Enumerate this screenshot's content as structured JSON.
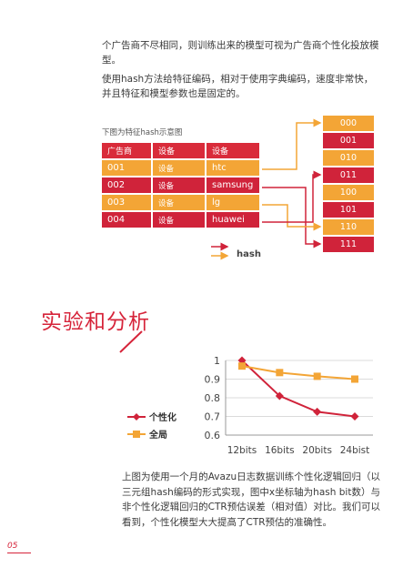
{
  "intro": {
    "p1": "个广告商不尽相同，则训练出来的模型可视为广告商个性化投放模型。",
    "p2": "使用hash方法给特征编码，相对于使用字典编码，速度非常快，并且特征和模型参数也是固定的。"
  },
  "figure": {
    "caption": "下图为特征hash示意图",
    "header": [
      "广告商",
      "设备",
      "设备"
    ],
    "rows": [
      {
        "id": "001",
        "device": "设备",
        "value": "htc",
        "color": "orange"
      },
      {
        "id": "002",
        "device": "设备",
        "value": "samsung",
        "color": "red"
      },
      {
        "id": "003",
        "device": "设备",
        "value": "lg",
        "color": "orange"
      },
      {
        "id": "004",
        "device": "设备",
        "value": "huawei",
        "color": "red"
      }
    ],
    "buckets": [
      {
        "label": "000",
        "color": "orange"
      },
      {
        "label": "001",
        "color": "red"
      },
      {
        "label": "010",
        "color": "orange"
      },
      {
        "label": "011",
        "color": "red"
      },
      {
        "label": "100",
        "color": "orange"
      },
      {
        "label": "101",
        "color": "red"
      },
      {
        "label": "110",
        "color": "orange"
      },
      {
        "label": "111",
        "color": "red"
      }
    ],
    "legend_label": "hash",
    "colors": {
      "red": "#d0233a",
      "orange": "#f3a536"
    }
  },
  "section_title": "实验和分析",
  "chart_data": {
    "type": "line",
    "categories": [
      "12bits",
      "16bits",
      "20bits",
      "24bist"
    ],
    "series": [
      {
        "name": "个性化",
        "values": [
          1.0,
          0.81,
          0.725,
          0.7
        ],
        "color": "#d0233a",
        "marker": "diamond"
      },
      {
        "name": "全局",
        "values": [
          0.97,
          0.935,
          0.915,
          0.9
        ],
        "color": "#f3a536",
        "marker": "square"
      }
    ],
    "yticks": [
      "1",
      "0.9",
      "0.8",
      "0.7",
      "0.6"
    ],
    "ylim": [
      0.6,
      1.0
    ],
    "legend": "left"
  },
  "body_text": "上图为使用一个月的Avazu日志数据训练个性化逻辑回归（以三元组hash编码的形式实现，图中x坐标轴为hash bit数）与非个性化逻辑回归的CTR预估误差（相对值）对比。我们可以看到，个性化模型大大提高了CTR预估的准确性。",
  "page_number": "05"
}
